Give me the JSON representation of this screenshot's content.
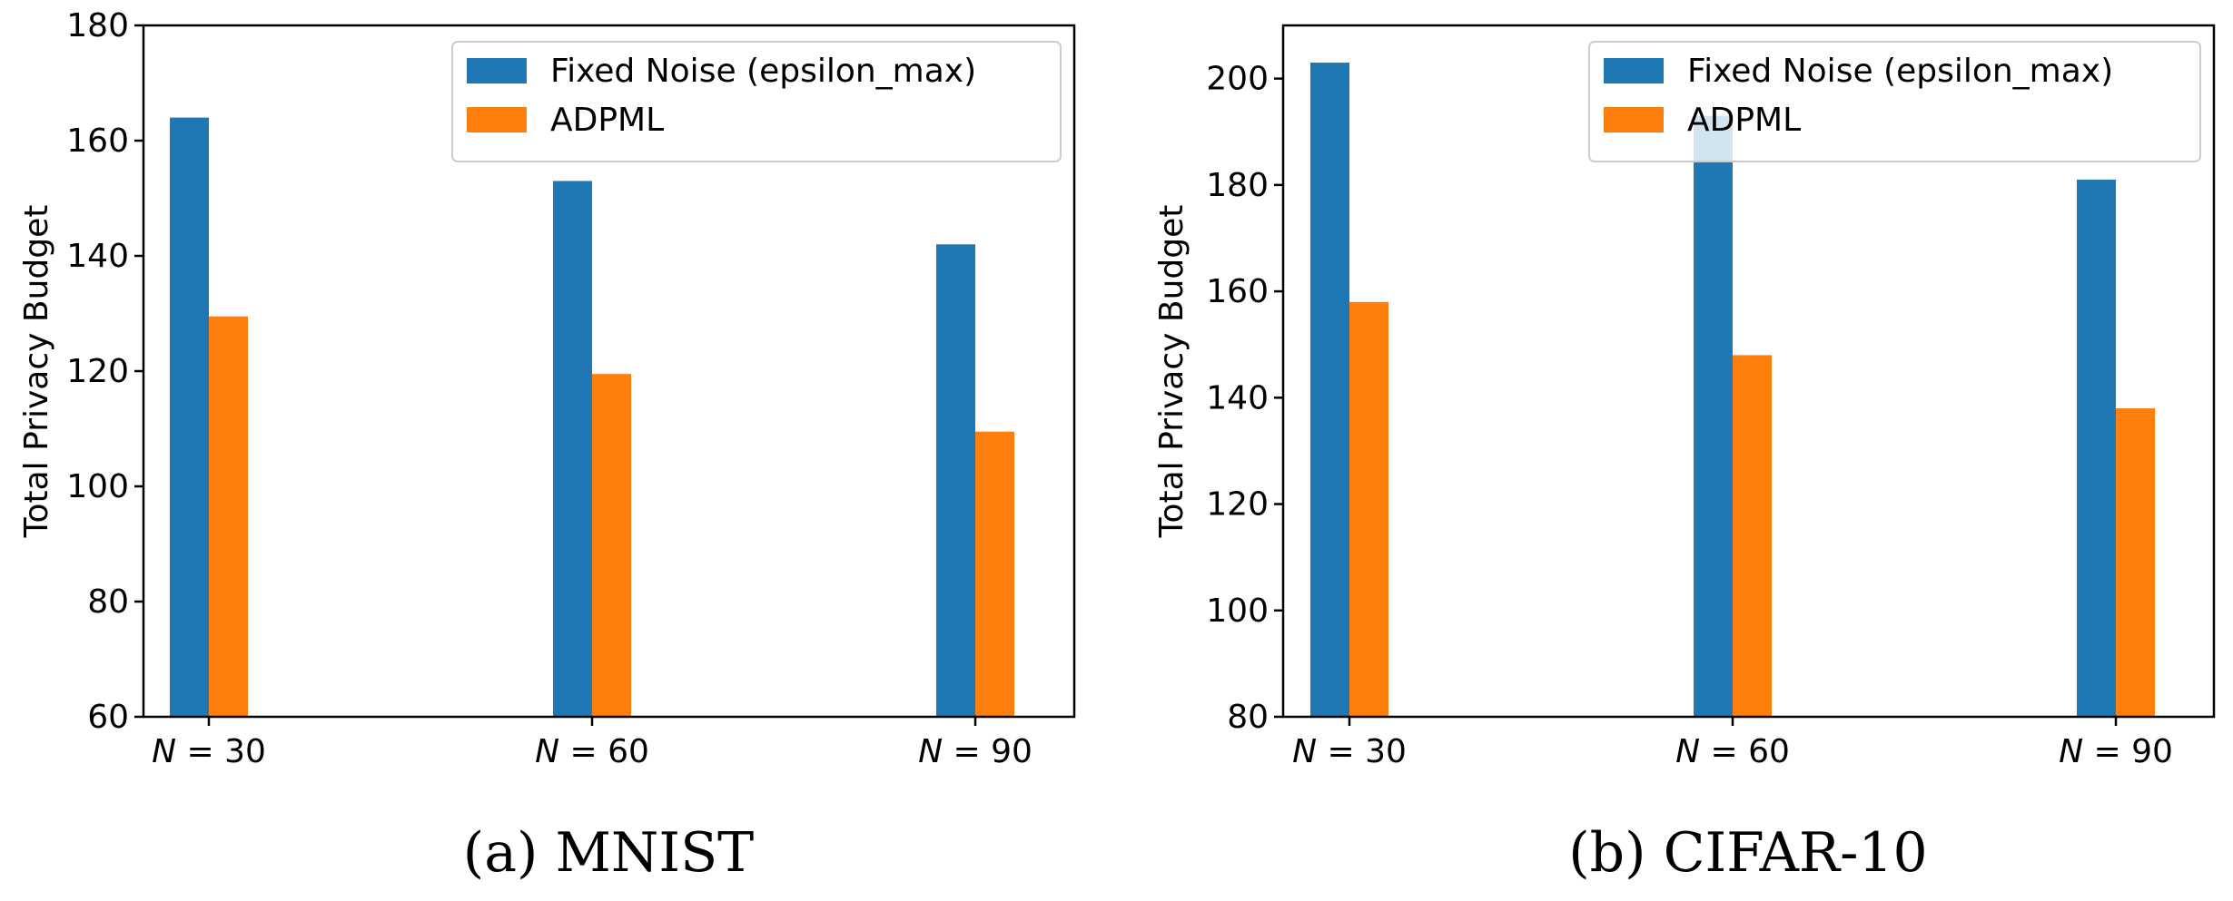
{
  "colors": {
    "series_1": "#1f77b4",
    "series_2": "#ff7f0e"
  },
  "chart_data": [
    {
      "type": "bar",
      "caption": "(a) MNIST",
      "ylabel": "Total Privacy Budget",
      "xlabel": "",
      "categories": [
        "N = 30",
        "N = 60",
        "N = 90"
      ],
      "ylim": [
        60,
        180
      ],
      "yticks": [
        60,
        80,
        100,
        120,
        140,
        160,
        180
      ],
      "legend": {
        "placement": "top-right"
      },
      "series": [
        {
          "name": "Fixed Noise (epsilon_max)",
          "values": [
            164,
            153,
            142
          ]
        },
        {
          "name": "ADPML",
          "values": [
            129.5,
            119.5,
            109.5
          ]
        }
      ]
    },
    {
      "type": "bar",
      "caption": "(b) CIFAR-10",
      "ylabel": "Total Privacy Budget",
      "xlabel": "",
      "categories": [
        "N = 30",
        "N = 60",
        "N = 90"
      ],
      "ylim": [
        80,
        210
      ],
      "yticks": [
        80,
        100,
        120,
        140,
        160,
        180,
        200
      ],
      "legend": {
        "placement": "top-right"
      },
      "series": [
        {
          "name": "Fixed Noise (epsilon_max)",
          "values": [
            203,
            193,
            181
          ]
        },
        {
          "name": "ADPML",
          "values": [
            158,
            148,
            138
          ]
        }
      ]
    }
  ]
}
